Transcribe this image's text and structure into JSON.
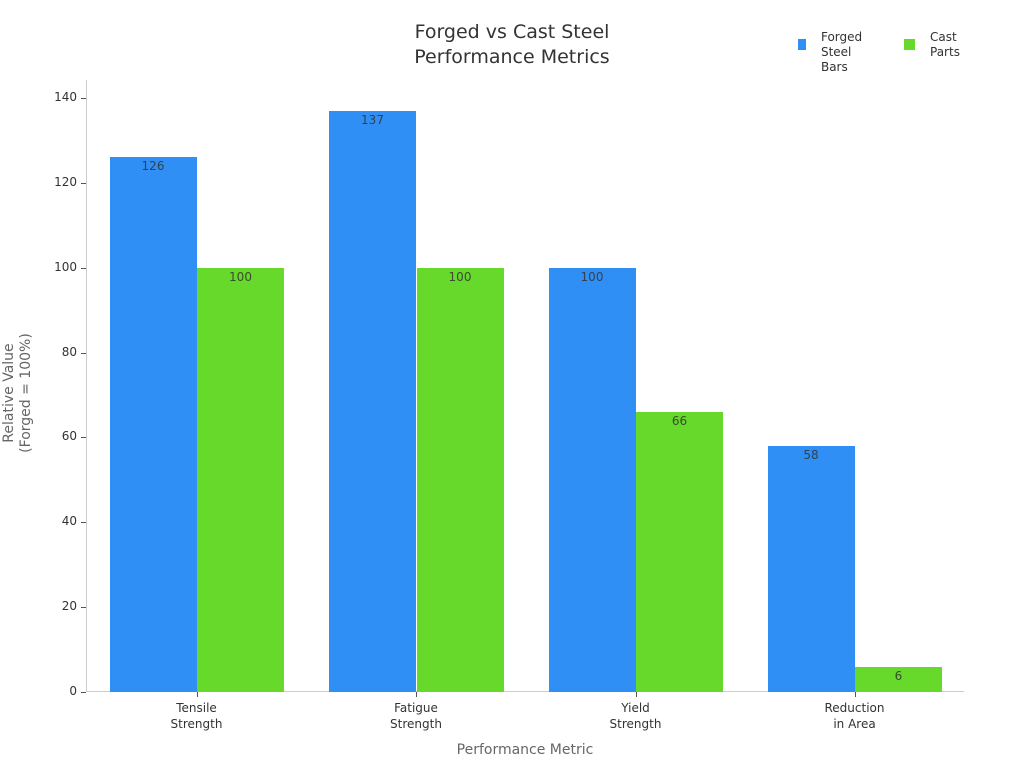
{
  "chart_data": {
    "type": "bar",
    "title": "Forged vs Cast Steel\nPerformance Metrics",
    "title_lines": [
      "Forged vs Cast Steel",
      "Performance Metrics"
    ],
    "xlabel": "Performance Metric",
    "ylabel_lines": [
      "Relative Value",
      "(Forged = 100%)"
    ],
    "ylabel": "Relative Value (Forged = 100%)",
    "ylim": [
      0,
      144
    ],
    "yticks": [
      0,
      20,
      40,
      60,
      80,
      100,
      120,
      140
    ],
    "grid": false,
    "legend_position": "top-right",
    "categories": [
      "Tensile Strength",
      "Fatigue Strength",
      "Yield Strength",
      "Reduction in Area"
    ],
    "category_lines": [
      [
        "Tensile",
        "Strength"
      ],
      [
        "Fatigue",
        "Strength"
      ],
      [
        "Yield",
        "Strength"
      ],
      [
        "Reduction",
        "in Area"
      ]
    ],
    "series": [
      {
        "name": "Forged Steel Bars",
        "name_lines": [
          "Forged",
          "Steel Bars"
        ],
        "color": "#2f8ff5",
        "values": [
          126,
          137,
          100,
          58
        ]
      },
      {
        "name": "Cast Parts",
        "name_lines": [
          "Cast",
          "Parts"
        ],
        "color": "#66d92a",
        "values": [
          100,
          100,
          66,
          6
        ]
      }
    ]
  }
}
